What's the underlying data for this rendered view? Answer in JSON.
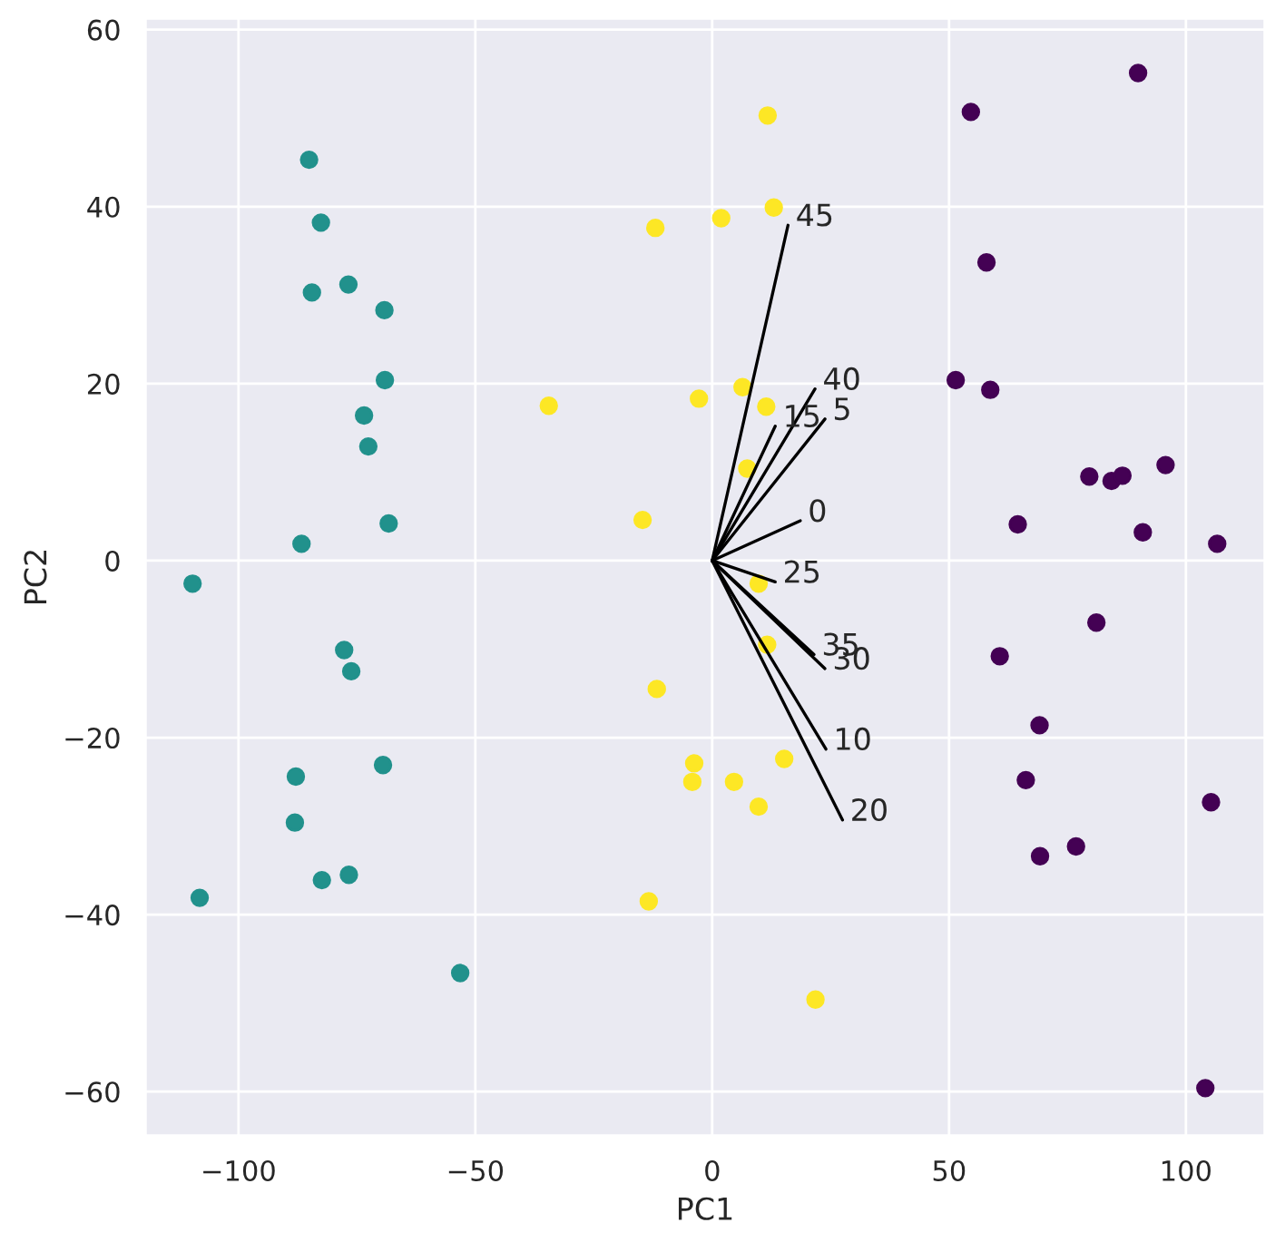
{
  "chart_data": {
    "type": "scatter",
    "xlabel": "PC1",
    "ylabel": "PC2",
    "grid": true,
    "xlim": [
      -119.7,
      116.7
    ],
    "ylim": [
      -65,
      61.3
    ],
    "xticks": [
      {
        "value": -100,
        "label": "−100"
      },
      {
        "value": -50,
        "label": "−50"
      },
      0,
      50,
      100
    ],
    "yticks": [
      {
        "value": -60,
        "label": "−60"
      },
      {
        "value": -40,
        "label": "−40"
      },
      {
        "value": -20,
        "label": "−20"
      },
      0,
      20,
      40,
      60
    ],
    "series": [
      {
        "marker": "circle",
        "color": "#440154",
        "x": [
          89.9,
          54.6,
          57.9,
          51.4,
          58.7,
          79.6,
          84.3,
          86.6,
          95.7,
          64.5,
          90.9,
          106.6,
          81.1,
          60.7,
          69.1,
          66.2,
          105.3,
          76.8,
          69.2,
          104.1
        ],
        "values": [
          55.1,
          50.7,
          33.7,
          20.4,
          19.3,
          9.5,
          9.0,
          9.6,
          10.8,
          4.1,
          3.2,
          1.9,
          -7.0,
          -10.8,
          -18.6,
          -24.8,
          -27.3,
          -32.3,
          -33.4,
          -59.6
        ]
      },
      {
        "marker": "circle",
        "color": "#21918c",
        "x": [
          -85.1,
          -82.6,
          -84.5,
          -76.8,
          -69.2,
          -69.1,
          -73.5,
          -72.6,
          -68.3,
          -86.7,
          -109.7,
          -77.7,
          -76.2,
          -69.5,
          -87.9,
          -88.1,
          -82.4,
          -76.7,
          -108.2,
          -53.2
        ],
        "values": [
          45.3,
          38.2,
          30.3,
          31.2,
          28.3,
          20.4,
          16.4,
          12.9,
          4.2,
          1.9,
          -2.6,
          -10.1,
          -12.5,
          -23.1,
          -24.4,
          -29.6,
          -36.1,
          -35.5,
          -38.1,
          -46.6
        ]
      },
      {
        "marker": "circle",
        "color": "#fde725",
        "x": [
          11.7,
          13.0,
          -12.0,
          1.9,
          -34.5,
          6.4,
          -2.8,
          11.4,
          7.4,
          -14.7,
          9.8,
          11.6,
          -11.7,
          -3.8,
          -4.2,
          4.6,
          15.2,
          9.8,
          -13.4,
          21.8
        ],
        "values": [
          50.3,
          39.9,
          37.6,
          38.7,
          17.5,
          19.6,
          18.3,
          17.4,
          10.4,
          4.6,
          -2.6,
          -9.5,
          -14.5,
          -22.9,
          -25.0,
          -25.0,
          -22.4,
          -27.8,
          -38.5,
          -49.6
        ]
      },
      {
        "type": "line",
        "name": "0",
        "color": "#000000",
        "x": [
          0,
          18.6
        ],
        "values": [
          0,
          4.5
        ]
      },
      {
        "type": "line",
        "name": "5",
        "color": "#000000",
        "x": [
          0,
          23.8
        ],
        "values": [
          0,
          16.0
        ]
      },
      {
        "type": "line",
        "name": "10",
        "color": "#000000",
        "x": [
          0,
          24.0
        ],
        "values": [
          0,
          -21.3
        ]
      },
      {
        "type": "line",
        "name": "15",
        "color": "#000000",
        "x": [
          0,
          13.3
        ],
        "values": [
          0,
          15.2
        ]
      },
      {
        "type": "line",
        "name": "20",
        "color": "#000000",
        "x": [
          0,
          27.5
        ],
        "values": [
          0,
          -29.3
        ]
      },
      {
        "type": "line",
        "name": "25",
        "color": "#000000",
        "x": [
          0,
          13.3
        ],
        "values": [
          0,
          -2.4
        ]
      },
      {
        "type": "line",
        "name": "30",
        "color": "#000000",
        "x": [
          0,
          23.8
        ],
        "values": [
          0,
          -12.2
        ]
      },
      {
        "type": "line",
        "name": "35",
        "color": "#000000",
        "x": [
          0,
          21.5
        ],
        "values": [
          0,
          -10.6
        ]
      },
      {
        "type": "line",
        "name": "40",
        "color": "#000000",
        "x": [
          0,
          21.7
        ],
        "values": [
          0,
          19.4
        ]
      },
      {
        "type": "line",
        "name": "45",
        "color": "#000000",
        "x": [
          0,
          16.0
        ],
        "values": [
          0,
          37.9
        ]
      }
    ]
  }
}
